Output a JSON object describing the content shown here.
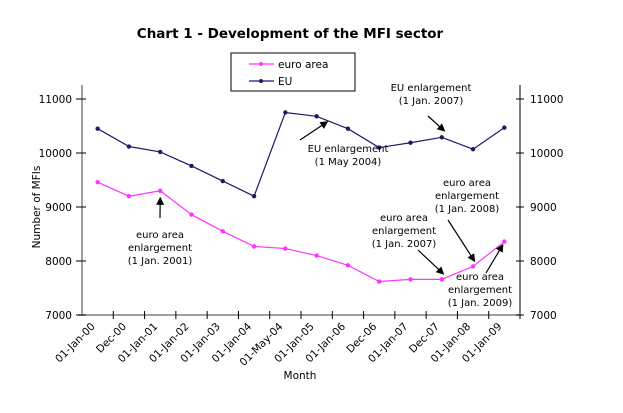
{
  "chart_data": {
    "type": "line",
    "title": "Chart 1 - Development of the MFI sector",
    "xlabel": "Month",
    "ylabel": "Number of MFIs",
    "ylim": [
      7000,
      11000
    ],
    "yticks": [
      7000,
      8000,
      9000,
      10000,
      11000
    ],
    "y_tick_labels": [
      "7000",
      "8000",
      "9000",
      "10000",
      "11000"
    ],
    "secondary_y_axis": true,
    "grid": false,
    "legend_position": "top-center",
    "categories": [
      "01-Jan-00",
      "Dec-00",
      "01-Jan-01",
      "01-Jan-02",
      "01-Jan-03",
      "01-Jan-04",
      "01-May-04",
      "01-Jan-05",
      "01-Jan-06",
      "Dec-06",
      "01-Jan-07",
      "Dec-07",
      "01-Jan-08",
      "01-Jan-09"
    ],
    "series": [
      {
        "name": "euro area",
        "color": "#ff33ff",
        "values": [
          9460,
          9200,
          9300,
          8860,
          8550,
          8270,
          8230,
          8100,
          7920,
          7620,
          7660,
          7660,
          7900,
          8360
        ]
      },
      {
        "name": "EU",
        "color": "#1a1a66",
        "values": [
          10450,
          10120,
          10020,
          9760,
          9480,
          9200,
          10750,
          10680,
          10450,
          10100,
          10190,
          10290,
          10070,
          10470
        ]
      }
    ],
    "annotations": [
      {
        "lines": [
          "euro area",
          "enlargement",
          "(1 Jan. 2001)"
        ],
        "series": "euro area",
        "category_index": 2
      },
      {
        "lines": [
          "EU enlargement",
          "(1 May 2004)"
        ],
        "series": "EU",
        "category_index": 7
      },
      {
        "lines": [
          "EU enlargement",
          "(1 Jan. 2007)"
        ],
        "series": "EU",
        "category_index": 11
      },
      {
        "lines": [
          "euro area",
          "enlargement",
          "(1 Jan. 2007)"
        ],
        "series": "euro area",
        "category_index": 11
      },
      {
        "lines": [
          "euro area",
          "enlargement",
          "(1 Jan. 2008)"
        ],
        "series": "euro area",
        "category_index": 12
      },
      {
        "lines": [
          "euro area",
          "enlargement",
          "(1 Jan. 2009)"
        ],
        "series": "euro area",
        "category_index": 13
      }
    ]
  }
}
